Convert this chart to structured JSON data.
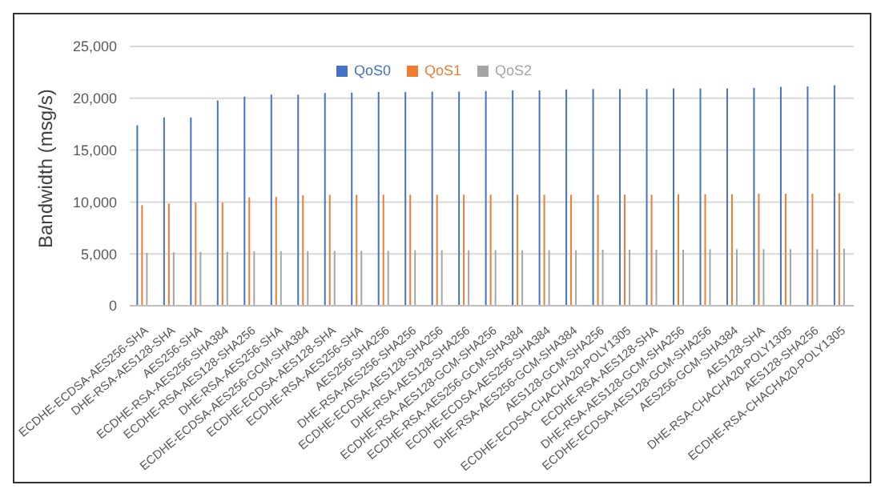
{
  "chart_data": {
    "type": "bar",
    "ylabel": "Bandwidth (msg/s)",
    "categories": [
      "ECDHE-ECDSA-AES256-SHA",
      "DHE-RSA-AES128-SHA",
      "AES256-SHA",
      "ECDHE-RSA-AES256-SHA384",
      "ECDHE-RSA-AES128-SHA256",
      "DHE-RSA-AES256-SHA",
      "ECDHE-ECDSA-AES256-GCM-SHA384",
      "ECDHE-ECDSA-AES128-SHA",
      "ECDHE-RSA-AES256-SHA",
      "AES256-SHA256",
      "DHE-RSA-AES256-SHA256",
      "ECDHE-ECDSA-AES128-SHA256",
      "DHE-RSA-AES128-SHA256",
      "ECDHE-RSA-AES128-GCM-SHA256",
      "ECDHE-RSA-AES256-GCM-SHA384",
      "ECDHE-ECDSA-AES256-SHA384",
      "DHE-RSA-AES256-GCM-SHA384",
      "AES128-GCM-SHA256",
      "ECDHE-ECDSA-CHACHA20-POLY1305",
      "ECDHE-RSA-AES128-SHA",
      "DHE-RSA-AES128-GCM-SHA256",
      "ECDHE-ECDSA-AES128-GCM-SHA256",
      "AES256-GCM-SHA384",
      "AES128-SHA",
      "DHE-RSA-CHACHA20-POLY1305",
      "AES128-SHA256",
      "ECDHE-RSA-CHACHA20-POLY1305"
    ],
    "series": [
      {
        "name": "QoS0",
        "color": "#4472c4",
        "values": [
          17400,
          18150,
          18150,
          19800,
          20150,
          20350,
          20350,
          20500,
          20550,
          20600,
          20600,
          20650,
          20650,
          20700,
          20750,
          20750,
          20850,
          20900,
          20900,
          20900,
          20950,
          20950,
          20950,
          21000,
          21100,
          21150,
          21250
        ]
      },
      {
        "name": "QoS1",
        "color": "#ed7d31",
        "values": [
          9700,
          9850,
          9950,
          9950,
          10450,
          10500,
          10650,
          10700,
          10700,
          10700,
          10700,
          10700,
          10700,
          10700,
          10700,
          10700,
          10700,
          10700,
          10700,
          10700,
          10750,
          10750,
          10750,
          10800,
          10800,
          10800,
          10850
        ]
      },
      {
        "name": "QoS2",
        "color": "#a5a5a5",
        "values": [
          5100,
          5150,
          5200,
          5200,
          5250,
          5250,
          5250,
          5300,
          5300,
          5300,
          5350,
          5350,
          5350,
          5350,
          5350,
          5350,
          5350,
          5400,
          5400,
          5400,
          5400,
          5450,
          5450,
          5450,
          5450,
          5450,
          5500
        ]
      }
    ],
    "ylim": [
      0,
      25000
    ],
    "yticks": [
      {
        "value": 0,
        "label": "0"
      },
      {
        "value": 5000,
        "label": "5,000"
      },
      {
        "value": 10000,
        "label": "10,000"
      },
      {
        "value": 15000,
        "label": "15,000"
      },
      {
        "value": 20000,
        "label": "20,000"
      },
      {
        "value": 25000,
        "label": "25,000"
      }
    ],
    "grid": "y",
    "legend": "top"
  }
}
